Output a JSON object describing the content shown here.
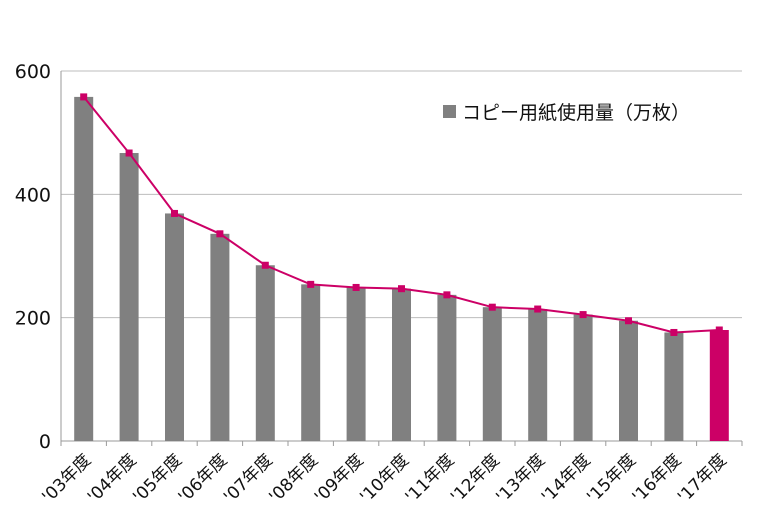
{
  "chart_data": {
    "type": "bar",
    "categories": [
      "'03年度",
      "'04年度",
      "'05年度",
      "'06年度",
      "'07年度",
      "'08年度",
      "'09年度",
      "'10年度",
      "'11年度",
      "'12年度",
      "'13年度",
      "'14年度",
      "'15年度",
      "'16年度",
      "'17年度"
    ],
    "series": [
      {
        "name": "コピー用紙使用量（万枚）",
        "values": [
          558,
          467,
          369,
          336,
          285,
          254,
          249,
          247,
          237,
          217,
          214,
          205,
          195,
          176,
          180
        ]
      }
    ],
    "trend_line_values": [
      558,
      467,
      369,
      336,
      285,
      254,
      249,
      247,
      237,
      217,
      214,
      205,
      195,
      176,
      180
    ],
    "ylim": [
      0,
      600
    ],
    "yticks": [
      0,
      200,
      400,
      600
    ],
    "grid": true,
    "legend_position": "top-right",
    "colors": {
      "bar": "#808080",
      "highlight_bar": "#cc0066",
      "trend_line": "#cc0066",
      "legend_marker": "#808080"
    },
    "highlight_index": 14
  }
}
